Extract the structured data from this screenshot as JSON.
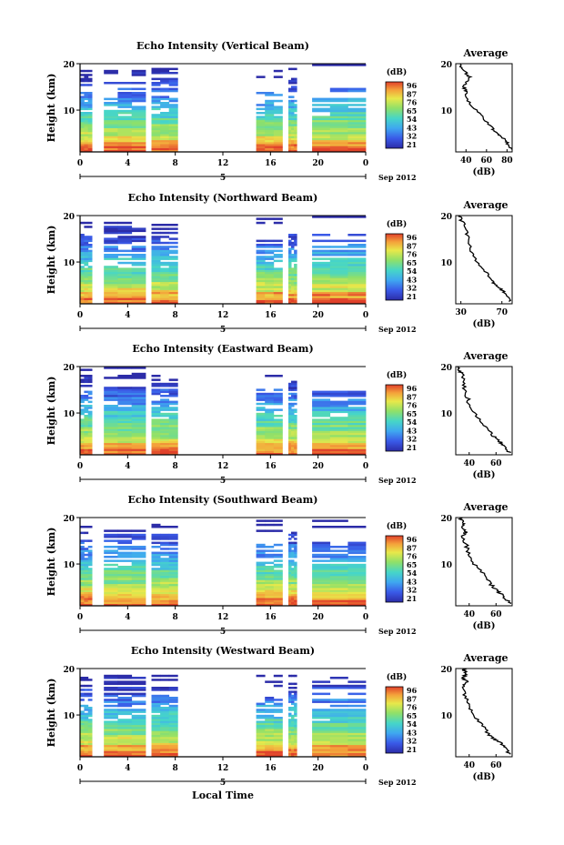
{
  "figure": {
    "xlabel": "Local Time",
    "date_label": "Sep 2012",
    "day_label": "5",
    "colorbar_unit": "(dB)",
    "colorbar_ticks": [
      "96",
      "87",
      "76",
      "65",
      "54",
      "43",
      "32",
      "21"
    ],
    "avg_title": "Average",
    "avg_xlabel": "(dB)"
  },
  "chart_data": [
    {
      "type": "heatmap",
      "title": "Echo Intensity (Vertical Beam)",
      "ylabel": "Height (km)",
      "x_ticks": [
        "0",
        "4",
        "8",
        "12",
        "16",
        "20",
        "0"
      ],
      "y_ticks": [
        "20",
        "10"
      ],
      "xlim": [
        0,
        24
      ],
      "ylim": [
        1,
        20
      ],
      "data_blocks_hours": [
        [
          0,
          1
        ],
        [
          2,
          5.5
        ],
        [
          6,
          8.2
        ],
        [
          14.8,
          17
        ],
        [
          17.5,
          18.2
        ],
        [
          19.5,
          24
        ]
      ],
      "colorbar": {
        "unit": "dB",
        "min": 21,
        "max": 96,
        "ticks": [
          96,
          87,
          76,
          65,
          54,
          43,
          32,
          21
        ]
      },
      "profile": {
        "title": "Average",
        "xlabel": "(dB)",
        "x_ticks": [
          "40",
          "60",
          "80"
        ],
        "xlim": [
          30,
          85
        ],
        "y_ticks": [
          "20",
          "10"
        ],
        "ylim": [
          1,
          20
        ],
        "heights": [
          1.5,
          3,
          4,
          5,
          6,
          8,
          10,
          12,
          14,
          15,
          17,
          18,
          19,
          20
        ],
        "values": [
          84,
          80,
          76,
          70,
          66,
          58,
          50,
          42,
          40,
          38,
          44,
          40,
          36,
          35
        ]
      }
    },
    {
      "type": "heatmap",
      "title": "Echo Intensity (Northward Beam)",
      "ylabel": "Height (km)",
      "x_ticks": [
        "0",
        "4",
        "8",
        "12",
        "16",
        "20",
        "0"
      ],
      "y_ticks": [
        "20",
        "10"
      ],
      "xlim": [
        0,
        24
      ],
      "ylim": [
        1,
        20
      ],
      "data_blocks_hours": [
        [
          0,
          1
        ],
        [
          2,
          5.5
        ],
        [
          6,
          8.2
        ],
        [
          14.8,
          17
        ],
        [
          17.5,
          18.2
        ],
        [
          19.5,
          24
        ]
      ],
      "colorbar": {
        "unit": "dB",
        "min": 21,
        "max": 96,
        "ticks": [
          96,
          87,
          76,
          65,
          54,
          43,
          32,
          21
        ]
      },
      "profile": {
        "title": "Average",
        "xlabel": "(dB)",
        "x_ticks": [
          "30",
          "70"
        ],
        "xlim": [
          25,
          80
        ],
        "y_ticks": [
          "20",
          "10"
        ],
        "ylim": [
          1,
          20
        ],
        "heights": [
          1.5,
          3,
          4,
          5,
          6,
          8,
          10,
          12,
          14,
          16,
          18,
          19,
          20
        ],
        "values": [
          78,
          74,
          70,
          64,
          60,
          54,
          46,
          40,
          38,
          36,
          34,
          30,
          29
        ]
      }
    },
    {
      "type": "heatmap",
      "title": "Echo Intensity (Eastward Beam)",
      "ylabel": "Height (km)",
      "x_ticks": [
        "0",
        "4",
        "8",
        "12",
        "16",
        "20",
        "0"
      ],
      "y_ticks": [
        "20",
        "10"
      ],
      "xlim": [
        0,
        24
      ],
      "ylim": [
        1,
        20
      ],
      "data_blocks_hours": [
        [
          0,
          1
        ],
        [
          2,
          5.5
        ],
        [
          6,
          8.2
        ],
        [
          14.8,
          17
        ],
        [
          17.5,
          18.2
        ],
        [
          19.5,
          24
        ]
      ],
      "colorbar": {
        "unit": "dB",
        "min": 21,
        "max": 96,
        "ticks": [
          96,
          87,
          76,
          65,
          54,
          43,
          32,
          21
        ]
      },
      "profile": {
        "title": "Average",
        "xlabel": "(dB)",
        "x_ticks": [
          "40",
          "60"
        ],
        "xlim": [
          30,
          72
        ],
        "y_ticks": [
          "20",
          "10"
        ],
        "ylim": [
          1,
          20
        ],
        "heights": [
          1.5,
          3,
          4,
          5,
          6,
          8,
          10,
          12,
          14,
          16,
          18,
          19,
          20
        ],
        "values": [
          70,
          66,
          62,
          58,
          55,
          50,
          44,
          40,
          38,
          36,
          35,
          33,
          32
        ]
      }
    },
    {
      "type": "heatmap",
      "title": "Echo Intensity (Southward Beam)",
      "ylabel": "Height (km)",
      "x_ticks": [
        "0",
        "4",
        "8",
        "12",
        "16",
        "20",
        "0"
      ],
      "y_ticks": [
        "20",
        "10"
      ],
      "xlim": [
        0,
        24
      ],
      "ylim": [
        1,
        20
      ],
      "data_blocks_hours": [
        [
          0,
          1
        ],
        [
          2,
          5.5
        ],
        [
          6,
          8.2
        ],
        [
          14.8,
          17
        ],
        [
          17.5,
          18.2
        ],
        [
          19.5,
          24
        ]
      ],
      "colorbar": {
        "unit": "dB",
        "min": 21,
        "max": 96,
        "ticks": [
          96,
          87,
          76,
          65,
          54,
          43,
          32,
          21
        ]
      },
      "profile": {
        "title": "Average",
        "xlabel": "(dB)",
        "x_ticks": [
          "40",
          "60"
        ],
        "xlim": [
          30,
          72
        ],
        "y_ticks": [
          "20",
          "10"
        ],
        "ylim": [
          1,
          20
        ],
        "heights": [
          1.5,
          3,
          4,
          5,
          6,
          8,
          10,
          12,
          14,
          16,
          17,
          18,
          19,
          20
        ],
        "values": [
          70,
          66,
          62,
          58,
          55,
          50,
          44,
          40,
          38,
          35,
          38,
          34,
          36,
          33
        ]
      }
    },
    {
      "type": "heatmap",
      "title": "Echo Intensity (Westward Beam)",
      "ylabel": "Height (km)",
      "x_ticks": [
        "0",
        "4",
        "8",
        "12",
        "16",
        "20",
        "0"
      ],
      "y_ticks": [
        "20",
        "10"
      ],
      "xlim": [
        0,
        24
      ],
      "ylim": [
        1,
        20
      ],
      "data_blocks_hours": [
        [
          0,
          1
        ],
        [
          2,
          5.5
        ],
        [
          6,
          8.2
        ],
        [
          14.8,
          17
        ],
        [
          17.5,
          18.2
        ],
        [
          19.5,
          24
        ]
      ],
      "colorbar": {
        "unit": "dB",
        "min": 21,
        "max": 96,
        "ticks": [
          96,
          87,
          76,
          65,
          54,
          43,
          32,
          21
        ]
      },
      "profile": {
        "title": "Average",
        "xlabel": "(dB)",
        "x_ticks": [
          "40",
          "60"
        ],
        "xlim": [
          30,
          72
        ],
        "y_ticks": [
          "20",
          "10"
        ],
        "ylim": [
          1,
          20
        ],
        "heights": [
          1.5,
          3,
          4,
          5,
          6,
          8,
          10,
          12,
          14,
          16,
          17,
          18,
          19,
          20
        ],
        "values": [
          70,
          67,
          63,
          58,
          54,
          49,
          44,
          40,
          37,
          35,
          38,
          36,
          38,
          35
        ]
      }
    }
  ]
}
